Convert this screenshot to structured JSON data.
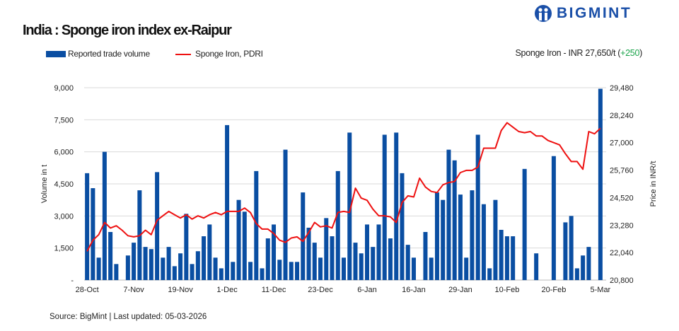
{
  "header": {
    "title": "India : Sponge iron index ex-Raipur",
    "logo_text": "BIGMINT",
    "summary_prefix": "Sponge Iron - INR 27,650/t (",
    "summary_change": "+250",
    "summary_suffix": ")",
    "change_color": "#1aa34a"
  },
  "footer": {
    "source": "Source: BigMint | Last updated: 05-03-2026"
  },
  "chart_data": {
    "type": "bar+line",
    "title": "India : Sponge iron index ex-Raipur",
    "legend": [
      {
        "name": "Reported trade volume",
        "type": "bar",
        "color": "#0a4ea2"
      },
      {
        "name": "Sponge Iron, PDRI",
        "type": "line",
        "color": "#ee1111"
      }
    ],
    "legend_placement": "top-left",
    "ylabel_left": "Volume in t",
    "ylabel_right": "Price in INR/t",
    "ylim_left": [
      0,
      9000
    ],
    "yticks_left": [
      "-",
      "1,500",
      "3,000",
      "4,500",
      "6,000",
      "7,500",
      "9,000"
    ],
    "ylim_right": [
      20800,
      29480
    ],
    "yticks_right": [
      "20,800",
      "22,040",
      "23,280",
      "24,520",
      "25,760",
      "27,000",
      "28,240",
      "29,480"
    ],
    "grid": true,
    "xtick_labels": [
      "28-Oct",
      "7-Nov",
      "19-Nov",
      "1-Dec",
      "11-Dec",
      "23-Dec",
      "6-Jan",
      "16-Jan",
      "29-Jan",
      "10-Feb",
      "20-Feb",
      "5-Mar"
    ],
    "xtick_every": 8,
    "series": [
      {
        "name": "Reported trade volume",
        "axis": "left",
        "values": [
          5000,
          4300,
          1050,
          6000,
          2250,
          750,
          0,
          1150,
          1750,
          4200,
          1550,
          1450,
          5050,
          1050,
          1550,
          650,
          1250,
          3100,
          750,
          1350,
          2050,
          2600,
          1050,
          550,
          7250,
          850,
          3750,
          3200,
          850,
          5100,
          550,
          1950,
          2600,
          950,
          6100,
          850,
          850,
          4100,
          2450,
          1750,
          1050,
          2900,
          2050,
          5100,
          1050,
          6900,
          1750,
          1250,
          2600,
          1550,
          2600,
          6800,
          1950,
          6900,
          5000,
          1650,
          1050,
          0,
          2250,
          1050,
          4100,
          3750,
          6100,
          5600,
          4000,
          1050,
          4200,
          6800,
          3550,
          550,
          3750,
          2350,
          2050,
          2050,
          0,
          5200,
          0,
          1250,
          0,
          0,
          5800,
          0,
          2700,
          3000,
          550,
          1150,
          1550,
          0,
          8950
        ]
      },
      {
        "name": "Sponge Iron, PDRI",
        "axis": "right",
        "values": [
          22100,
          22600,
          22850,
          23400,
          23150,
          23250,
          23050,
          22800,
          22750,
          22800,
          23050,
          22850,
          23500,
          23700,
          23900,
          23750,
          23600,
          23750,
          23550,
          23700,
          23600,
          23750,
          23850,
          23750,
          23900,
          23900,
          23900,
          24050,
          23850,
          23350,
          23100,
          23100,
          22900,
          22600,
          22500,
          22700,
          22750,
          22550,
          22950,
          23400,
          23200,
          23250,
          23150,
          23850,
          23900,
          23850,
          24950,
          24500,
          24400,
          24000,
          23700,
          23700,
          23650,
          23400,
          24300,
          24600,
          24550,
          25400,
          25000,
          24800,
          24750,
          25100,
          25200,
          25250,
          25650,
          25750,
          25750,
          25900,
          26750,
          26750,
          26750,
          27550,
          27900,
          27700,
          27500,
          27450,
          27500,
          27300,
          27300,
          27100,
          27000,
          26900,
          26500,
          26150,
          26150,
          25800,
          27500,
          27400,
          27650
        ]
      }
    ]
  }
}
